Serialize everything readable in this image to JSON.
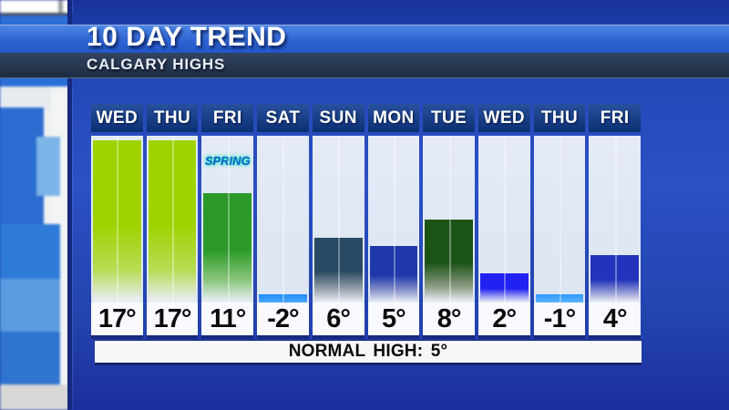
{
  "header": {
    "title": "10 DAY TREND",
    "subtitle": "CALGARY HIGHS"
  },
  "chart_data": {
    "type": "bar",
    "title": "10 DAY TREND",
    "subtitle": "CALGARY HIGHS",
    "location": "Calgary",
    "metric": "Daily high temperature",
    "categories": [
      "WED",
      "THU",
      "FRI",
      "SAT",
      "SUN",
      "MON",
      "TUE",
      "WED",
      "THU",
      "FRI"
    ],
    "values": [
      17,
      17,
      11,
      -2,
      6,
      5,
      8,
      2,
      -1,
      4
    ],
    "value_labels": [
      "17°",
      "17°",
      "11°",
      "-2°",
      "6°",
      "5°",
      "8°",
      "2°",
      "-1°",
      "4°"
    ],
    "ylim": [
      -3,
      18
    ],
    "grid": false,
    "legend": false,
    "annotations": [
      {
        "label": "SPRING",
        "category_index": 2
      }
    ],
    "normal_high_value": "5°",
    "bar_colors": [
      {
        "top": "#9ed300",
        "mid": "#b8dc55"
      },
      {
        "top": "#9ed300",
        "mid": "#b8dc55"
      },
      {
        "top": "#2c9a28",
        "mid": "#8cc77e"
      },
      {
        "top": "#1f8ffa",
        "mid": "#4aa5fb"
      },
      {
        "top": "#2a4a63",
        "mid": "#9aa3ad"
      },
      {
        "top": "#1e38ab",
        "mid": "#9099cb"
      },
      {
        "top": "#1c5416",
        "mid": "#88997f"
      },
      {
        "top": "#2121f2",
        "mid": "#9d9df2"
      },
      {
        "top": "#2d9cfe",
        "mid": "#5db1fe"
      },
      {
        "top": "#2233bb",
        "mid": "#9aa0d8"
      }
    ],
    "accent_colors": {
      "panel_blue": "#2a50c4",
      "header_navy": "#0c2f72",
      "banner_blue": "#2e63d2",
      "subtitle_slate": "#22334b"
    }
  },
  "footer": {
    "normal_high_text": "NORMAL HIGH: 5°"
  }
}
